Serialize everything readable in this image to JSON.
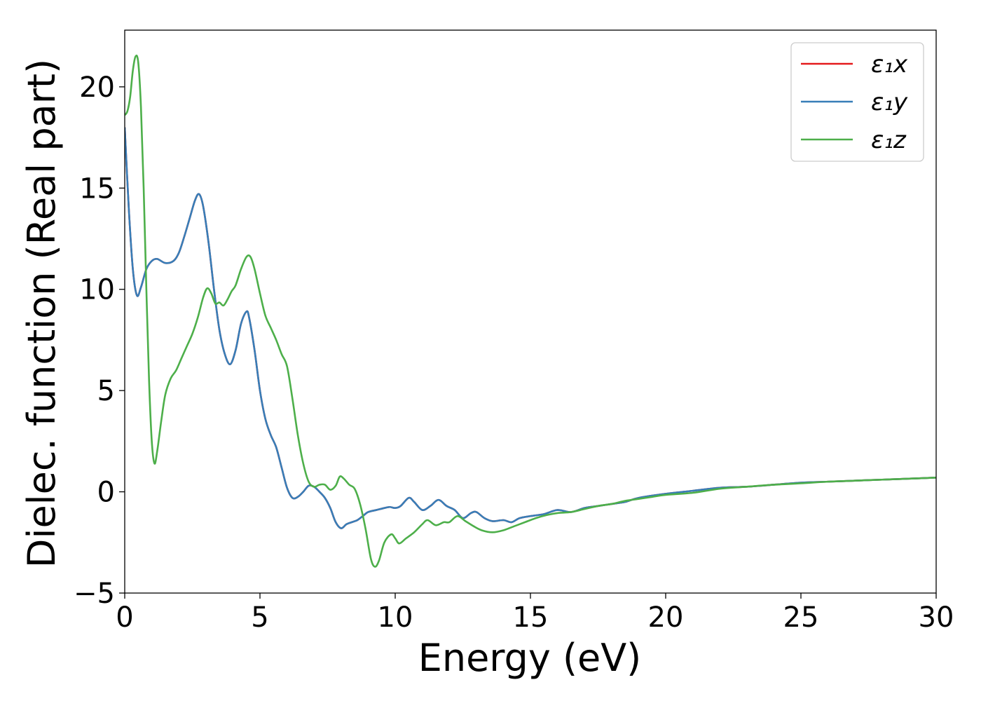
{
  "chart_data": {
    "type": "line",
    "title": "",
    "xlabel": "Energy (eV)",
    "ylabel": "Dielec. function (Real part)",
    "xlim": [
      0,
      30
    ],
    "ylim": [
      -5,
      22.8
    ],
    "xticks": [
      0,
      5,
      10,
      15,
      20,
      25,
      30
    ],
    "xtick_labels": [
      "0",
      "5",
      "10",
      "15",
      "20",
      "25",
      "30"
    ],
    "yticks": [
      -5,
      0,
      5,
      10,
      15,
      20
    ],
    "ytick_labels": [
      "−5",
      "0",
      "5",
      "10",
      "15",
      "20"
    ],
    "grid": false,
    "legend_position": "top-right",
    "series": [
      {
        "name": "ε₁x",
        "color": "#e41a1c",
        "points": [
          [
            0.0,
            18.0
          ],
          [
            0.15,
            14.0
          ],
          [
            0.3,
            11.0
          ],
          [
            0.45,
            9.7
          ],
          [
            0.6,
            10.1
          ],
          [
            0.8,
            11.0
          ],
          [
            1.0,
            11.4
          ],
          [
            1.2,
            11.5
          ],
          [
            1.5,
            11.3
          ],
          [
            1.8,
            11.4
          ],
          [
            2.0,
            11.8
          ],
          [
            2.2,
            12.6
          ],
          [
            2.4,
            13.5
          ],
          [
            2.6,
            14.4
          ],
          [
            2.75,
            14.7
          ],
          [
            2.9,
            14.1
          ],
          [
            3.1,
            12.3
          ],
          [
            3.3,
            10.0
          ],
          [
            3.5,
            8.0
          ],
          [
            3.7,
            6.8
          ],
          [
            3.9,
            6.3
          ],
          [
            4.1,
            7.0
          ],
          [
            4.3,
            8.3
          ],
          [
            4.5,
            8.9
          ],
          [
            4.6,
            8.6
          ],
          [
            4.8,
            7.0
          ],
          [
            5.0,
            5.0
          ],
          [
            5.2,
            3.6
          ],
          [
            5.4,
            2.8
          ],
          [
            5.6,
            2.2
          ],
          [
            5.8,
            1.2
          ],
          [
            6.0,
            0.2
          ],
          [
            6.2,
            -0.3
          ],
          [
            6.4,
            -0.25
          ],
          [
            6.6,
            0.0
          ],
          [
            6.8,
            0.3
          ],
          [
            7.0,
            0.25
          ],
          [
            7.2,
            0.0
          ],
          [
            7.4,
            -0.3
          ],
          [
            7.6,
            -0.8
          ],
          [
            7.8,
            -1.5
          ],
          [
            8.0,
            -1.8
          ],
          [
            8.2,
            -1.6
          ],
          [
            8.4,
            -1.5
          ],
          [
            8.6,
            -1.4
          ],
          [
            8.8,
            -1.2
          ],
          [
            9.0,
            -1.0
          ],
          [
            9.3,
            -0.9
          ],
          [
            9.6,
            -0.8
          ],
          [
            9.8,
            -0.75
          ],
          [
            10.0,
            -0.8
          ],
          [
            10.2,
            -0.7
          ],
          [
            10.5,
            -0.3
          ],
          [
            10.7,
            -0.5
          ],
          [
            11.0,
            -0.9
          ],
          [
            11.3,
            -0.7
          ],
          [
            11.6,
            -0.4
          ],
          [
            11.9,
            -0.7
          ],
          [
            12.2,
            -0.9
          ],
          [
            12.5,
            -1.3
          ],
          [
            12.8,
            -1.05
          ],
          [
            13.0,
            -1.0
          ],
          [
            13.3,
            -1.3
          ],
          [
            13.6,
            -1.45
          ],
          [
            14.0,
            -1.4
          ],
          [
            14.3,
            -1.5
          ],
          [
            14.6,
            -1.3
          ],
          [
            15.0,
            -1.2
          ],
          [
            15.5,
            -1.1
          ],
          [
            16.0,
            -0.9
          ],
          [
            16.5,
            -1.0
          ],
          [
            17.0,
            -0.8
          ],
          [
            17.5,
            -0.7
          ],
          [
            18.0,
            -0.6
          ],
          [
            18.5,
            -0.5
          ],
          [
            19.0,
            -0.3
          ],
          [
            20.0,
            -0.1
          ],
          [
            21.0,
            0.05
          ],
          [
            22.0,
            0.2
          ],
          [
            23.0,
            0.25
          ],
          [
            24.0,
            0.35
          ],
          [
            25.0,
            0.45
          ],
          [
            26.0,
            0.5
          ],
          [
            27.0,
            0.55
          ],
          [
            28.0,
            0.6
          ],
          [
            29.0,
            0.65
          ],
          [
            30.0,
            0.7
          ]
        ]
      },
      {
        "name": "ε₁y",
        "color": "#377eb8",
        "points": [
          [
            0.0,
            18.0
          ],
          [
            0.15,
            14.0
          ],
          [
            0.3,
            11.0
          ],
          [
            0.45,
            9.7
          ],
          [
            0.6,
            10.1
          ],
          [
            0.8,
            11.0
          ],
          [
            1.0,
            11.4
          ],
          [
            1.2,
            11.5
          ],
          [
            1.5,
            11.3
          ],
          [
            1.8,
            11.4
          ],
          [
            2.0,
            11.8
          ],
          [
            2.2,
            12.6
          ],
          [
            2.4,
            13.5
          ],
          [
            2.6,
            14.4
          ],
          [
            2.75,
            14.7
          ],
          [
            2.9,
            14.1
          ],
          [
            3.1,
            12.3
          ],
          [
            3.3,
            10.0
          ],
          [
            3.5,
            8.0
          ],
          [
            3.7,
            6.8
          ],
          [
            3.9,
            6.3
          ],
          [
            4.1,
            7.0
          ],
          [
            4.3,
            8.3
          ],
          [
            4.5,
            8.9
          ],
          [
            4.6,
            8.6
          ],
          [
            4.8,
            7.0
          ],
          [
            5.0,
            5.0
          ],
          [
            5.2,
            3.6
          ],
          [
            5.4,
            2.8
          ],
          [
            5.6,
            2.2
          ],
          [
            5.8,
            1.2
          ],
          [
            6.0,
            0.2
          ],
          [
            6.2,
            -0.3
          ],
          [
            6.4,
            -0.25
          ],
          [
            6.6,
            0.0
          ],
          [
            6.8,
            0.3
          ],
          [
            7.0,
            0.25
          ],
          [
            7.2,
            0.0
          ],
          [
            7.4,
            -0.3
          ],
          [
            7.6,
            -0.8
          ],
          [
            7.8,
            -1.5
          ],
          [
            8.0,
            -1.8
          ],
          [
            8.2,
            -1.6
          ],
          [
            8.4,
            -1.5
          ],
          [
            8.6,
            -1.4
          ],
          [
            8.8,
            -1.2
          ],
          [
            9.0,
            -1.0
          ],
          [
            9.3,
            -0.9
          ],
          [
            9.6,
            -0.8
          ],
          [
            9.8,
            -0.75
          ],
          [
            10.0,
            -0.8
          ],
          [
            10.2,
            -0.7
          ],
          [
            10.5,
            -0.3
          ],
          [
            10.7,
            -0.5
          ],
          [
            11.0,
            -0.9
          ],
          [
            11.3,
            -0.7
          ],
          [
            11.6,
            -0.4
          ],
          [
            11.9,
            -0.7
          ],
          [
            12.2,
            -0.9
          ],
          [
            12.5,
            -1.3
          ],
          [
            12.8,
            -1.05
          ],
          [
            13.0,
            -1.0
          ],
          [
            13.3,
            -1.3
          ],
          [
            13.6,
            -1.45
          ],
          [
            14.0,
            -1.4
          ],
          [
            14.3,
            -1.5
          ],
          [
            14.6,
            -1.3
          ],
          [
            15.0,
            -1.2
          ],
          [
            15.5,
            -1.1
          ],
          [
            16.0,
            -0.9
          ],
          [
            16.5,
            -1.0
          ],
          [
            17.0,
            -0.8
          ],
          [
            17.5,
            -0.7
          ],
          [
            18.0,
            -0.6
          ],
          [
            18.5,
            -0.5
          ],
          [
            19.0,
            -0.3
          ],
          [
            20.0,
            -0.1
          ],
          [
            21.0,
            0.05
          ],
          [
            22.0,
            0.2
          ],
          [
            23.0,
            0.25
          ],
          [
            24.0,
            0.35
          ],
          [
            25.0,
            0.45
          ],
          [
            26.0,
            0.5
          ],
          [
            27.0,
            0.55
          ],
          [
            28.0,
            0.6
          ],
          [
            29.0,
            0.65
          ],
          [
            30.0,
            0.7
          ]
        ]
      },
      {
        "name": "ε₁z",
        "color": "#4daf4a",
        "points": [
          [
            0.0,
            18.6
          ],
          [
            0.1,
            18.8
          ],
          [
            0.2,
            19.5
          ],
          [
            0.3,
            20.8
          ],
          [
            0.4,
            21.5
          ],
          [
            0.5,
            21.2
          ],
          [
            0.6,
            19.0
          ],
          [
            0.7,
            15.0
          ],
          [
            0.8,
            10.0
          ],
          [
            0.9,
            5.5
          ],
          [
            1.0,
            2.5
          ],
          [
            1.1,
            1.4
          ],
          [
            1.2,
            2.0
          ],
          [
            1.35,
            3.5
          ],
          [
            1.5,
            4.8
          ],
          [
            1.7,
            5.6
          ],
          [
            1.9,
            6.0
          ],
          [
            2.1,
            6.6
          ],
          [
            2.3,
            7.2
          ],
          [
            2.5,
            7.8
          ],
          [
            2.7,
            8.6
          ],
          [
            2.9,
            9.6
          ],
          [
            3.05,
            10.05
          ],
          [
            3.2,
            9.8
          ],
          [
            3.35,
            9.3
          ],
          [
            3.5,
            9.35
          ],
          [
            3.65,
            9.2
          ],
          [
            3.8,
            9.5
          ],
          [
            3.95,
            9.9
          ],
          [
            4.1,
            10.2
          ],
          [
            4.3,
            11.0
          ],
          [
            4.5,
            11.6
          ],
          [
            4.65,
            11.6
          ],
          [
            4.8,
            11.0
          ],
          [
            5.0,
            9.8
          ],
          [
            5.2,
            8.7
          ],
          [
            5.4,
            8.1
          ],
          [
            5.6,
            7.5
          ],
          [
            5.8,
            6.8
          ],
          [
            6.0,
            6.2
          ],
          [
            6.2,
            4.6
          ],
          [
            6.4,
            2.8
          ],
          [
            6.6,
            1.4
          ],
          [
            6.8,
            0.5
          ],
          [
            7.0,
            0.25
          ],
          [
            7.2,
            0.35
          ],
          [
            7.4,
            0.35
          ],
          [
            7.6,
            0.1
          ],
          [
            7.8,
            0.3
          ],
          [
            7.95,
            0.75
          ],
          [
            8.1,
            0.65
          ],
          [
            8.3,
            0.35
          ],
          [
            8.5,
            0.15
          ],
          [
            8.7,
            -0.6
          ],
          [
            8.9,
            -1.8
          ],
          [
            9.1,
            -3.3
          ],
          [
            9.25,
            -3.7
          ],
          [
            9.4,
            -3.4
          ],
          [
            9.6,
            -2.5
          ],
          [
            9.85,
            -2.1
          ],
          [
            10.0,
            -2.3
          ],
          [
            10.15,
            -2.55
          ],
          [
            10.4,
            -2.3
          ],
          [
            10.7,
            -2.0
          ],
          [
            11.0,
            -1.6
          ],
          [
            11.2,
            -1.4
          ],
          [
            11.5,
            -1.65
          ],
          [
            11.8,
            -1.5
          ],
          [
            12.0,
            -1.5
          ],
          [
            12.3,
            -1.2
          ],
          [
            12.6,
            -1.45
          ],
          [
            12.9,
            -1.7
          ],
          [
            13.2,
            -1.9
          ],
          [
            13.6,
            -2.0
          ],
          [
            14.0,
            -1.9
          ],
          [
            14.4,
            -1.7
          ],
          [
            14.8,
            -1.5
          ],
          [
            15.2,
            -1.3
          ],
          [
            15.6,
            -1.15
          ],
          [
            16.0,
            -1.05
          ],
          [
            16.5,
            -1.0
          ],
          [
            17.0,
            -0.85
          ],
          [
            17.5,
            -0.7
          ],
          [
            18.0,
            -0.6
          ],
          [
            18.5,
            -0.45
          ],
          [
            19.0,
            -0.35
          ],
          [
            19.5,
            -0.25
          ],
          [
            20.0,
            -0.15
          ],
          [
            21.0,
            -0.05
          ],
          [
            22.0,
            0.15
          ],
          [
            23.0,
            0.25
          ],
          [
            24.0,
            0.35
          ],
          [
            25.0,
            0.42
          ],
          [
            26.0,
            0.5
          ],
          [
            27.0,
            0.55
          ],
          [
            28.0,
            0.6
          ],
          [
            29.0,
            0.65
          ],
          [
            30.0,
            0.7
          ]
        ]
      }
    ]
  }
}
